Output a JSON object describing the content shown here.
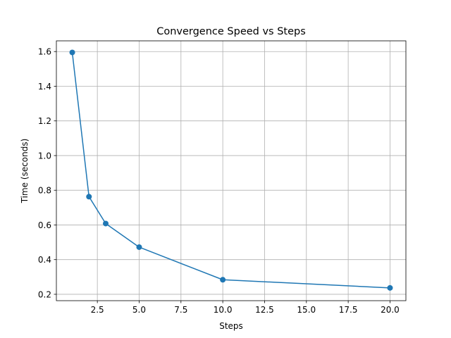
{
  "chart_data": {
    "type": "line",
    "title": "Convergence Speed vs Steps",
    "xlabel": "Steps",
    "ylabel": "Time (seconds)",
    "x": [
      1,
      2,
      3,
      5,
      10,
      20
    ],
    "series": [
      {
        "values": [
          1.595,
          0.763,
          0.608,
          0.472,
          0.284,
          0.237
        ]
      }
    ],
    "xlim": [
      0.05,
      20.95
    ],
    "ylim": [
      0.1632,
      1.6618
    ],
    "xticks": [
      2.5,
      5.0,
      7.5,
      10.0,
      12.5,
      15.0,
      17.5,
      20.0
    ],
    "xtick_labels": [
      "2.5",
      "5.0",
      "7.5",
      "10.0",
      "12.5",
      "15.0",
      "17.5",
      "20.0"
    ],
    "yticks": [
      0.2,
      0.4,
      0.6,
      0.8,
      1.0,
      1.2,
      1.4,
      1.6
    ],
    "ytick_labels": [
      "0.2",
      "0.4",
      "0.6",
      "0.8",
      "1.0",
      "1.2",
      "1.4",
      "1.6"
    ],
    "grid": true,
    "marker": "circle",
    "line_color": "#1f77b4",
    "grid_color": "#b0b0b0"
  }
}
